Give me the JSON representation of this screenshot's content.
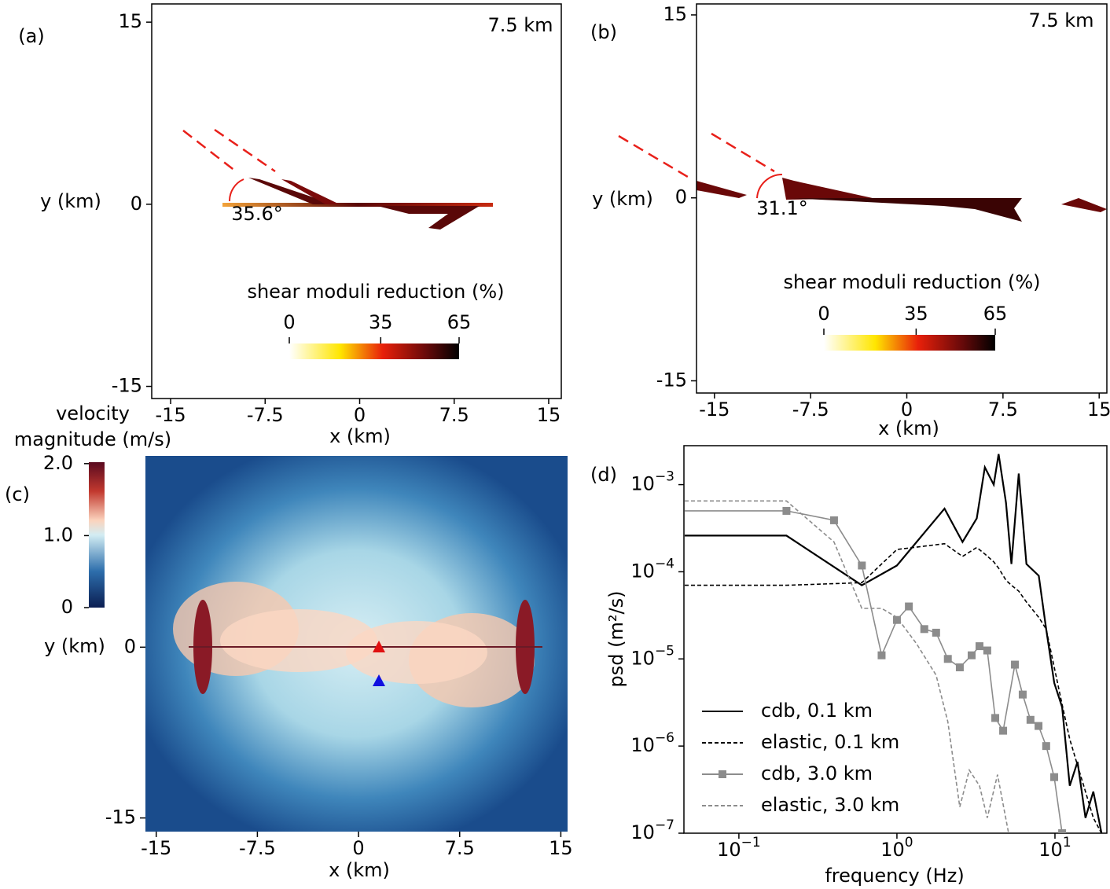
{
  "chart_data": [
    {
      "type": "heatmap",
      "panel_label": "(a)",
      "annotation": "7.5 km",
      "angle_label": "35.6°",
      "xlabel": "x (km)",
      "ylabel": "y (km)",
      "xlim": [
        -16.5,
        16
      ],
      "ylim": [
        -16,
        16.5
      ],
      "xticks": [
        -15,
        -7.5,
        0,
        7.5,
        15
      ],
      "yticks": [
        -15,
        0,
        15
      ],
      "colorbar": {
        "label": "shear moduli reduction (%)",
        "lim": [
          0,
          65
        ],
        "ticks": [
          0,
          35,
          65
        ],
        "orientation": "horizontal"
      }
    },
    {
      "type": "heatmap",
      "panel_label": "(b)",
      "annotation": "7.5 km",
      "angle_label": "31.1°",
      "xlabel": "x (km)",
      "ylabel": "y (km)",
      "xlim": [
        -16.4,
        15.6
      ],
      "ylim": [
        -16,
        15.9
      ],
      "xticks": [
        -15,
        -7.5,
        0,
        7.5,
        15
      ],
      "yticks": [
        -15,
        0,
        15
      ],
      "colorbar": {
        "label": "shear moduli reduction (%)",
        "lim": [
          0,
          65
        ],
        "ticks": [
          0,
          35,
          65
        ],
        "orientation": "horizontal"
      }
    },
    {
      "type": "heatmap",
      "panel_label": "(c)",
      "xlabel": "x (km)",
      "ylabel": "y (km)",
      "xlim": [
        -15.8,
        15.5
      ],
      "ylim": [
        -16.2,
        16.8
      ],
      "xticks": [
        -15,
        -7.5,
        0,
        7.5,
        15
      ],
      "yticks": [
        -15,
        0
      ],
      "colorbar": {
        "label": [
          "velocity",
          "magnitude (m/s)"
        ],
        "lim": [
          0,
          2.02
        ],
        "ticks": [
          {
            "value": 0,
            "label": "0"
          },
          {
            "value": 1,
            "label": "1.0"
          },
          {
            "value": 2,
            "label": "2.0"
          }
        ],
        "orientation": "vertical"
      }
    },
    {
      "type": "line",
      "panel_label": "(d)",
      "xlabel": "frequency (Hz)",
      "ylabel": "psd (m²/s)",
      "xscale": "log",
      "yscale": "log",
      "xlim": [
        0.0449,
        21.3
      ],
      "ylim": [
        1e-07,
        0.0028
      ],
      "xticks": [
        {
          "value": 0.1,
          "label": "10^−1"
        },
        {
          "value": 1,
          "label": "10^0"
        },
        {
          "value": 10,
          "label": "10^1"
        }
      ],
      "yticks": [
        {
          "value": 1e-07,
          "label": "10^−7"
        },
        {
          "value": 1e-06,
          "label": "10^−6"
        },
        {
          "value": 1e-05,
          "label": "10^−5"
        },
        {
          "value": 0.0001,
          "label": "10^−4"
        },
        {
          "value": 0.001,
          "label": "10^−3"
        }
      ],
      "legend": "lower left",
      "series": [
        {
          "name": "cdb, 0.1 km",
          "color": "#000000",
          "dash": "solid",
          "marker": false,
          "x": [
            0.0454,
            0.2,
            0.6,
            1.0,
            2.0,
            2.6,
            3.2,
            3.6,
            4.1,
            4.4,
            4.9,
            5.3,
            5.9,
            6.6,
            7.9,
            8.8,
            9.9,
            11.1,
            12.4,
            13.9,
            15.6,
            17.5,
            19.7
          ],
          "values": [
            0.00026,
            0.00026,
            7e-05,
            0.000118,
            0.00053,
            0.00022,
            0.00041,
            0.00158,
            0.001,
            0.00224,
            0.00062,
            0.000123,
            0.00134,
            0.000123,
            9e-05,
            2.2e-05,
            5.3e-06,
            2.8e-06,
            3.5e-07,
            6.6e-07,
            1.5e-07,
            3e-07,
            1e-07
          ]
        },
        {
          "name": "elastic, 0.1 km",
          "color": "#000000",
          "dash": "dashed",
          "marker": false,
          "x": [
            0.0454,
            0.2,
            0.6,
            1.0,
            2.0,
            2.6,
            3.2,
            3.6,
            4.1,
            4.4,
            4.9,
            5.3,
            5.9,
            6.6,
            7.9,
            8.8,
            9.9,
            11.1,
            12.4,
            13.9,
            15.6,
            17.5,
            19.7
          ],
          "values": [
            7e-05,
            7e-05,
            7.5e-05,
            0.00018,
            0.00021,
            0.00015,
            0.00019,
            0.00016,
            0.00013,
            0.00011,
            8e-05,
            7e-05,
            6e-05,
            4.5e-05,
            3e-05,
            2.2e-05,
            8e-06,
            3e-06,
            1.2e-06,
            6e-07,
            3e-07,
            1.5e-07,
            1e-07
          ]
        },
        {
          "name": "cdb, 3.0 km",
          "color": "#8c8c8c",
          "dash": "solid",
          "marker": true,
          "x": [
            0.0454,
            0.2,
            0.4,
            0.6,
            0.8,
            1.0,
            1.19,
            1.49,
            1.77,
            2.1,
            2.5,
            2.97,
            3.33,
            3.73,
            4.19,
            4.7,
            5.58,
            6.25,
            7.0,
            7.87,
            8.8,
            9.89,
            11.1
          ],
          "values": [
            0.0005,
            0.0005,
            0.00039,
            0.000118,
            1.1e-05,
            2.8e-05,
            4e-05,
            2.2e-05,
            2e-05,
            1e-05,
            8e-06,
            1.1e-05,
            1.4e-05,
            1.25e-05,
            2.1e-06,
            1.5e-06,
            8.6e-06,
            3.9e-06,
            2e-06,
            1.7e-06,
            1e-06,
            4.4e-07,
            1e-07
          ]
        },
        {
          "name": "elastic, 3.0 km",
          "color": "#8c8c8c",
          "dash": "dashed",
          "marker": false,
          "x": [
            0.0454,
            0.2,
            0.4,
            0.6,
            0.8,
            1.0,
            1.33,
            1.77,
            2.1,
            2.5,
            2.87,
            3.33,
            3.73,
            4.33,
            5.09
          ],
          "values": [
            0.00065,
            0.00065,
            0.00022,
            3.8e-05,
            3.8e-05,
            3e-05,
            1.5e-05,
            6.5e-06,
            1.9e-06,
            2e-07,
            5.3e-07,
            3.5e-07,
            1.5e-07,
            4.7e-07,
            1e-07
          ]
        }
      ]
    }
  ]
}
